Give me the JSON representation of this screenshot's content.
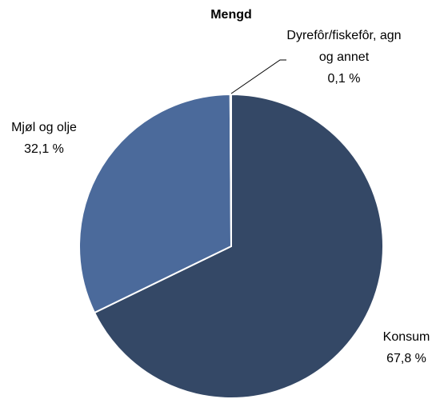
{
  "chart_data": {
    "type": "pie",
    "title": "Mengd",
    "categories": [
      "Konsum",
      "Mjøl og olje",
      "Dyrefôr/fiskefôr, agn og annet"
    ],
    "values": [
      67.8,
      32.1,
      0.1
    ],
    "value_labels": [
      "67,8 %",
      "32,1 %",
      "0,1 %"
    ],
    "colors": [
      "#344866",
      "#4b6a9b",
      "#4b6a9b"
    ]
  }
}
